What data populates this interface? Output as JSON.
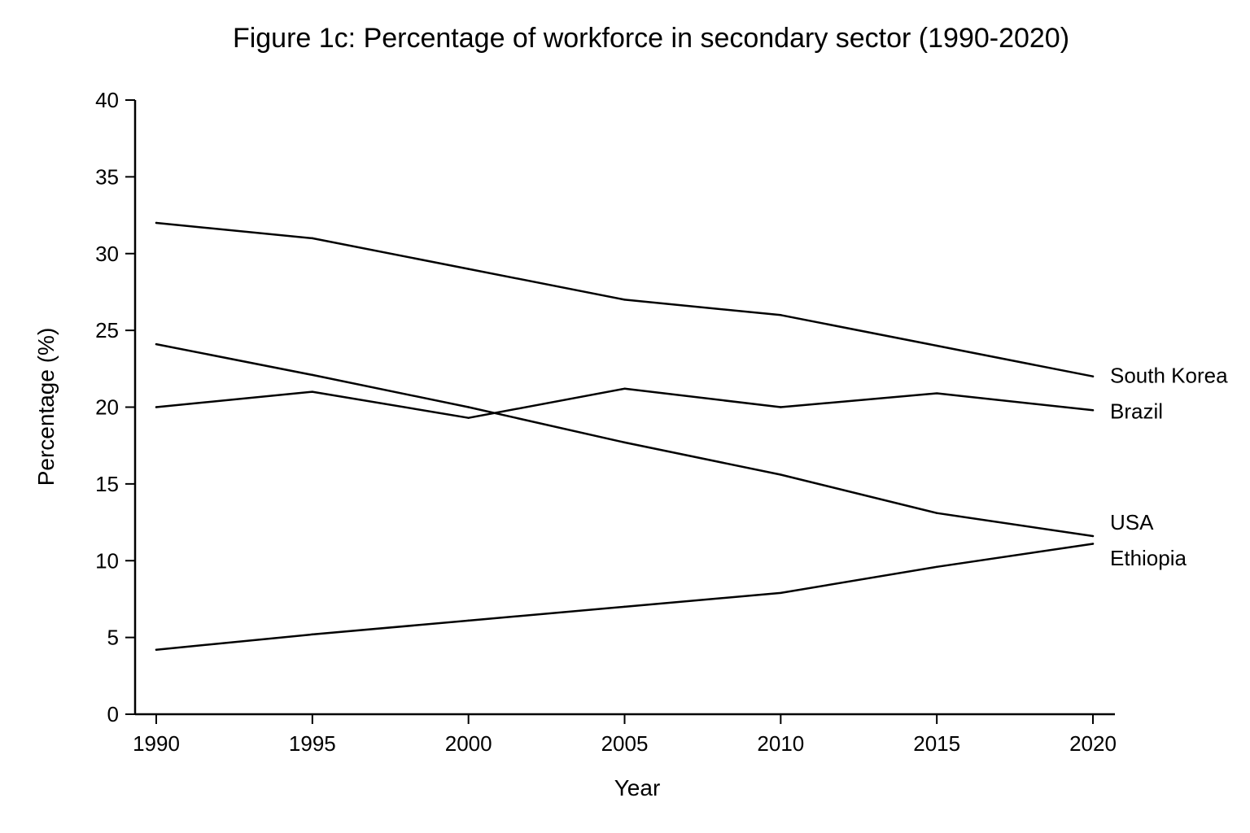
{
  "chart_data": {
    "type": "line",
    "title": "Figure 1c: Percentage of workforce in secondary sector (1990-2020)",
    "xlabel": "Year",
    "ylabel": "Percentage (%)",
    "x": [
      1990,
      1995,
      2000,
      2005,
      2010,
      2015,
      2020
    ],
    "x_tick_labels": [
      "1990",
      "1995",
      "2000",
      "2005",
      "2010",
      "2015",
      "2020"
    ],
    "y_ticks": [
      0,
      5,
      10,
      15,
      20,
      25,
      30,
      35,
      40
    ],
    "y_tick_labels": [
      "0",
      "5",
      "10",
      "15",
      "20",
      "25",
      "30",
      "35",
      "40"
    ],
    "ylim": [
      0,
      40
    ],
    "grid": false,
    "legend": "direct labels at right end of lines",
    "series": [
      {
        "name": "South Korea",
        "values": [
          32,
          31,
          29,
          27,
          26,
          24,
          22
        ],
        "color": "#000000"
      },
      {
        "name": "Brazil",
        "values": [
          20,
          21,
          19.3,
          21.2,
          20,
          20.9,
          19.8
        ],
        "color": "#000000"
      },
      {
        "name": "USA",
        "values": [
          24.1,
          22.1,
          20,
          17.7,
          15.6,
          13.1,
          11.6
        ],
        "color": "#000000"
      },
      {
        "name": "Ethiopia",
        "values": [
          4.2,
          5.2,
          6.1,
          7,
          7.9,
          9.6,
          11.1
        ],
        "color": "#000000"
      }
    ]
  }
}
